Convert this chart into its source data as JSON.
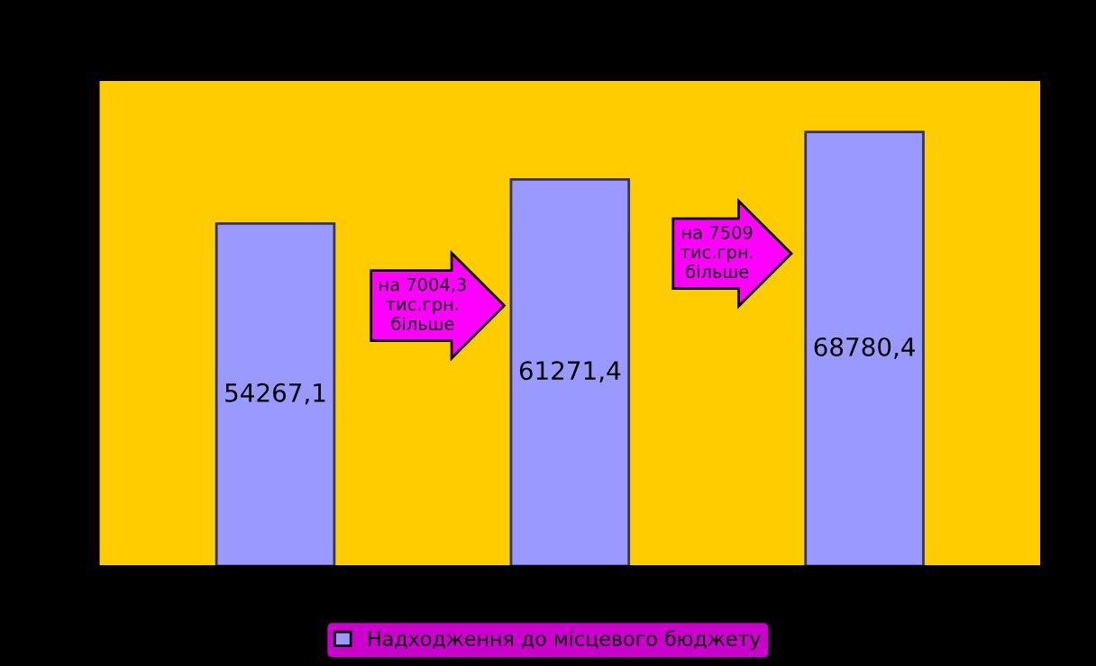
{
  "chart_data": {
    "type": "bar",
    "categories": [
      null,
      null,
      null
    ],
    "series": [
      {
        "name": "Надходження до місцевого бюджету",
        "color": "#9999ff",
        "values": [
          54267.1,
          61271.4,
          68780.4
        ],
        "value_labels": [
          "54267,1",
          "61271,4",
          "68780,4"
        ]
      }
    ],
    "annotations": [
      "на 7004,3\nтис.грн.\nбільше",
      "на 7509\nтис.грн.\nбільше"
    ],
    "legend": "bottom",
    "grid": false
  }
}
